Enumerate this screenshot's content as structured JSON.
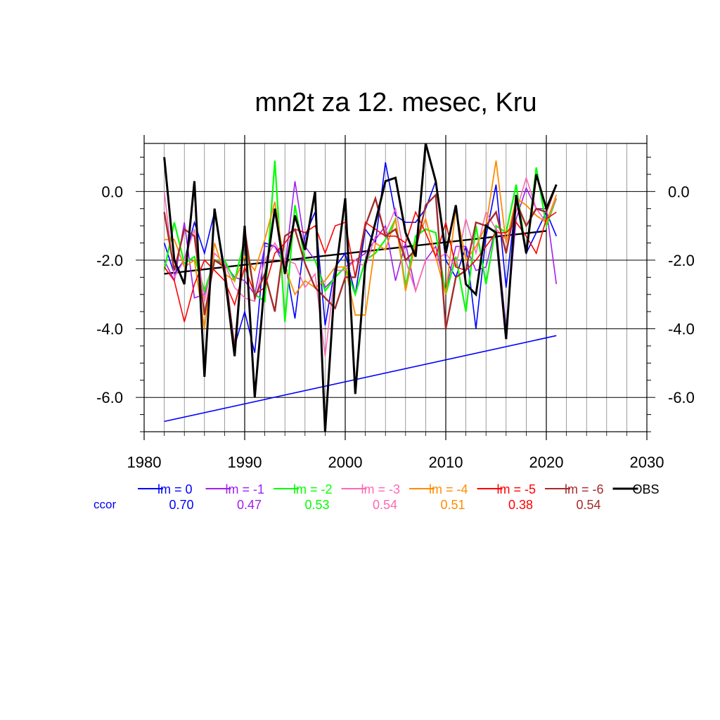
{
  "chart_data": {
    "type": "line",
    "title": "mn2t za 12. mesec, Kru",
    "xlim": [
      1980,
      2030
    ],
    "ylim": [
      -7.0,
      1.4
    ],
    "x_ticks": [
      1980,
      1990,
      2000,
      2010,
      2020,
      2030
    ],
    "x_tick_labels": [
      "1980",
      "1990",
      "2000",
      "2010",
      "2020",
      "2030"
    ],
    "y_ticks": [
      0.0,
      -2.0,
      -4.0,
      -6.0
    ],
    "y_tick_labels": [
      "0.0",
      "-2.0",
      "-4.0",
      "-6.0"
    ],
    "ccor_label": "ccor",
    "series": [
      {
        "name": "lm = 0",
        "ccor": "0.70",
        "color": "#0000ff",
        "width": 1.6,
        "x": [
          1982,
          1983,
          1984,
          1985,
          1986,
          1987,
          1988,
          1989,
          1990,
          1991,
          1992,
          1993,
          1994,
          1995,
          1996,
          1997,
          1998,
          1999,
          2000,
          2001,
          2002,
          2003,
          2004,
          2005,
          2006,
          2007,
          2008,
          2009,
          2010,
          2011,
          2012,
          2013,
          2014,
          2015,
          2016,
          2017,
          2018,
          2019,
          2020,
          2021
        ],
        "values": [
          -1.5,
          -2.4,
          -2.0,
          -0.9,
          -1.8,
          -0.6,
          -2.2,
          -4.5,
          -3.5,
          -4.7,
          -1.5,
          -1.6,
          -2.0,
          -3.7,
          -1.3,
          -0.6,
          -3.9,
          -2.2,
          -1.8,
          -3.0,
          -1.1,
          -1.5,
          0.85,
          -0.7,
          -0.9,
          -0.9,
          -0.5,
          0.3,
          -2.0,
          -2.5,
          -1.6,
          -4.0,
          -1.3,
          0.2,
          -2.8,
          -0.2,
          -1.8,
          -1.2,
          -0.6,
          -1.3
        ]
      },
      {
        "name": "lm = -1",
        "ccor": "0.47",
        "color": "#a020f0",
        "width": 1.6,
        "x": [
          1982,
          1983,
          1984,
          1985,
          1986,
          1987,
          1988,
          1989,
          1990,
          1991,
          1992,
          1993,
          1994,
          1995,
          1996,
          1997,
          1998,
          1999,
          2000,
          2001,
          2002,
          2003,
          2004,
          2005,
          2006,
          2007,
          2008,
          2009,
          2010,
          2011,
          2012,
          2013,
          2014,
          2015,
          2016,
          2017,
          2018,
          2019,
          2020,
          2021
        ],
        "values": [
          -2.0,
          -2.6,
          -0.9,
          -3.1,
          -3.0,
          -2.0,
          -2.1,
          -2.5,
          -2.6,
          -3.0,
          -1.6,
          -1.6,
          -2.2,
          0.3,
          -1.6,
          -2.0,
          -2.8,
          -2.5,
          -2.2,
          -2.0,
          -1.8,
          -1.4,
          -1.0,
          -2.6,
          -1.5,
          -2.9,
          -2.0,
          -1.6,
          -2.9,
          -1.6,
          -1.6,
          -2.3,
          -2.2,
          -1.0,
          -4.0,
          -0.8,
          0.1,
          -0.5,
          -0.5,
          -2.7
        ]
      },
      {
        "name": "lm = -2",
        "ccor": "0.53",
        "color": "#00ff00",
        "width": 2.2,
        "x": [
          1982,
          1983,
          1984,
          1985,
          1986,
          1987,
          1988,
          1989,
          1990,
          1991,
          1992,
          1993,
          1994,
          1995,
          1996,
          1997,
          1998,
          1999,
          2000,
          2001,
          2002,
          2003,
          2004,
          2005,
          2006,
          2007,
          2008,
          2009,
          2010,
          2011,
          2012,
          2013,
          2014,
          2015,
          2016,
          2017,
          2018,
          2019,
          2020,
          2021
        ],
        "values": [
          -2.3,
          -0.9,
          -2.1,
          -1.9,
          -2.9,
          -2.0,
          -2.0,
          -2.6,
          -1.4,
          -3.0,
          -3.2,
          0.9,
          -3.8,
          -0.4,
          -2.0,
          -2.0,
          -2.9,
          -2.5,
          -2.2,
          -3.0,
          -2.0,
          -1.8,
          -1.4,
          -0.8,
          -2.8,
          -1.3,
          -1.1,
          -1.2,
          -3.0,
          -1.9,
          -3.5,
          -1.0,
          -2.7,
          -1.0,
          -1.2,
          0.2,
          -1.8,
          0.7,
          -1.0,
          -0.2
        ]
      },
      {
        "name": "lm = -3",
        "ccor": "0.54",
        "color": "#ff69b4",
        "width": 1.6,
        "x": [
          1982,
          1983,
          1984,
          1985,
          1986,
          1987,
          1988,
          1989,
          1990,
          1991,
          1992,
          1993,
          1994,
          1995,
          1996,
          1997,
          1998,
          1999,
          2000,
          2001,
          2002,
          2003,
          2004,
          2005,
          2006,
          2007,
          2008,
          2009,
          2010,
          2011,
          2012,
          2013,
          2014,
          2015,
          2016,
          2017,
          2018,
          2019,
          2020,
          2021
        ],
        "values": [
          0.0,
          -2.5,
          -2.0,
          -1.1,
          -3.2,
          -1.8,
          -2.1,
          -2.8,
          -3.1,
          -3.2,
          -2.0,
          -1.5,
          -2.0,
          -2.1,
          -2.8,
          -2.4,
          -4.8,
          -2.3,
          -2.3,
          -2.0,
          -2.2,
          -1.3,
          -1.2,
          -0.5,
          -2.0,
          -2.9,
          -2.0,
          -2.0,
          -1.8,
          -2.2,
          -0.8,
          -1.8,
          -0.6,
          -1.1,
          -1.4,
          -0.6,
          0.4,
          -0.5,
          -0.9,
          -0.2
        ]
      },
      {
        "name": "lm = -4",
        "ccor": "0.51",
        "color": "#ff8c00",
        "width": 1.8,
        "x": [
          1982,
          1983,
          1984,
          1985,
          1986,
          1987,
          1988,
          1989,
          1990,
          1991,
          1992,
          1993,
          1994,
          1995,
          1996,
          1997,
          1998,
          1999,
          2000,
          2001,
          2002,
          2003,
          2004,
          2005,
          2006,
          2007,
          2008,
          2009,
          2010,
          2011,
          2012,
          2013,
          2014,
          2015,
          2016,
          2017,
          2018,
          2019,
          2020,
          2021
        ],
        "values": [
          -1.4,
          -1.4,
          -2.2,
          -2.0,
          -4.0,
          -1.5,
          -2.4,
          -2.6,
          -1.9,
          -2.3,
          -1.4,
          -0.3,
          -2.2,
          -3.0,
          -2.6,
          -2.8,
          -2.6,
          -2.2,
          -2.2,
          -3.6,
          -3.6,
          -1.5,
          -1.7,
          -0.8,
          -2.9,
          -1.5,
          -0.8,
          -1.9,
          -3.0,
          -0.5,
          -2.0,
          -1.6,
          -1.0,
          0.9,
          -1.5,
          -0.2,
          -0.4,
          -0.7,
          -0.9,
          -0.1
        ]
      },
      {
        "name": "lm = -5",
        "ccor": "0.38",
        "color": "#ff0000",
        "width": 1.6,
        "x": [
          1982,
          1983,
          1984,
          1985,
          1986,
          1987,
          1988,
          1989,
          1990,
          1991,
          1992,
          1993,
          1994,
          1995,
          1996,
          1997,
          1998,
          1999,
          2000,
          2001,
          2002,
          2003,
          2004,
          2005,
          2006,
          2007,
          2008,
          2009,
          2010,
          2011,
          2012,
          2013,
          2014,
          2015,
          2016,
          2017,
          2018,
          2019,
          2020,
          2021
        ],
        "values": [
          -2.2,
          -2.6,
          -3.8,
          -2.7,
          -2.0,
          -2.3,
          -2.6,
          -3.3,
          -2.2,
          -3.0,
          -2.8,
          -1.8,
          -1.5,
          -1.1,
          -1.2,
          -1.0,
          -1.8,
          -1.0,
          -0.9,
          -2.5,
          -0.9,
          -1.1,
          -1.3,
          -1.3,
          -1.5,
          -0.6,
          -1.2,
          -1.9,
          -0.9,
          -2.2,
          -2.3,
          -2.0,
          -1.6,
          -1.2,
          -1.2,
          -0.9,
          -1.3,
          -1.8,
          -0.8,
          -0.6
        ]
      },
      {
        "name": "lm = -6",
        "ccor": "0.54",
        "color": "#a52a2a",
        "width": 2.4,
        "x": [
          1982,
          1983,
          1984,
          1985,
          1986,
          1987,
          1988,
          1989,
          1990,
          1991,
          1992,
          1993,
          1994,
          1995,
          1996,
          1997,
          1998,
          1999,
          2000,
          2001,
          2002,
          2003,
          2004,
          2005,
          2006,
          2007,
          2008,
          2009,
          2010,
          2011,
          2012,
          2013,
          2014,
          2015,
          2016,
          2017,
          2018,
          2019,
          2020,
          2021
        ],
        "values": [
          -0.6,
          -2.3,
          -1.1,
          -1.3,
          -3.6,
          -2.0,
          -2.2,
          -4.6,
          -1.1,
          -3.1,
          -2.4,
          -3.5,
          -1.3,
          -1.1,
          -2.1,
          -2.8,
          -3.1,
          -3.4,
          -2.5,
          -2.5,
          -1.0,
          -0.2,
          -1.3,
          -1.1,
          -2.0,
          -1.7,
          -0.4,
          -0.1,
          -4.0,
          -2.5,
          -2.3,
          -0.9,
          -1.0,
          -0.6,
          -1.8,
          -0.3,
          -1.0,
          -0.5,
          -0.6,
          0.2
        ]
      },
      {
        "name": "OBS",
        "ccor": "",
        "color": "#000000",
        "width": 3.0,
        "x": [
          1982,
          1983,
          1984,
          1985,
          1986,
          1987,
          1988,
          1989,
          1990,
          1991,
          1992,
          1993,
          1994,
          1995,
          1996,
          1997,
          1998,
          1999,
          2000,
          2001,
          2002,
          2003,
          2004,
          2005,
          2006,
          2007,
          2008,
          2009,
          2010,
          2011,
          2012,
          2013,
          2014,
          2015,
          2016,
          2017,
          2018,
          2019,
          2020,
          2021
        ],
        "values": [
          1.0,
          -2.0,
          -2.7,
          0.3,
          -5.4,
          -0.5,
          -2.4,
          -4.8,
          -1.0,
          -6.0,
          -2.6,
          -0.5,
          -2.4,
          -0.7,
          -1.7,
          0.0,
          -7.0,
          -2.5,
          -0.2,
          -5.9,
          -2.1,
          -0.9,
          0.3,
          0.4,
          -1.2,
          -1.9,
          1.4,
          0.3,
          -1.8,
          -0.4,
          -2.7,
          -3.0,
          -1.0,
          -1.2,
          -4.3,
          -0.1,
          -1.8,
          0.5,
          -0.5,
          0.2
        ]
      }
    ],
    "trend_lines": [
      {
        "color": "#000000",
        "width": 2.4,
        "x": [
          1982,
          2020
        ],
        "values": [
          -2.4,
          -1.15
        ]
      },
      {
        "color": "#0000ff",
        "width": 1.6,
        "x": [
          1982,
          2021
        ],
        "values": [
          -6.7,
          -4.2
        ]
      }
    ]
  }
}
